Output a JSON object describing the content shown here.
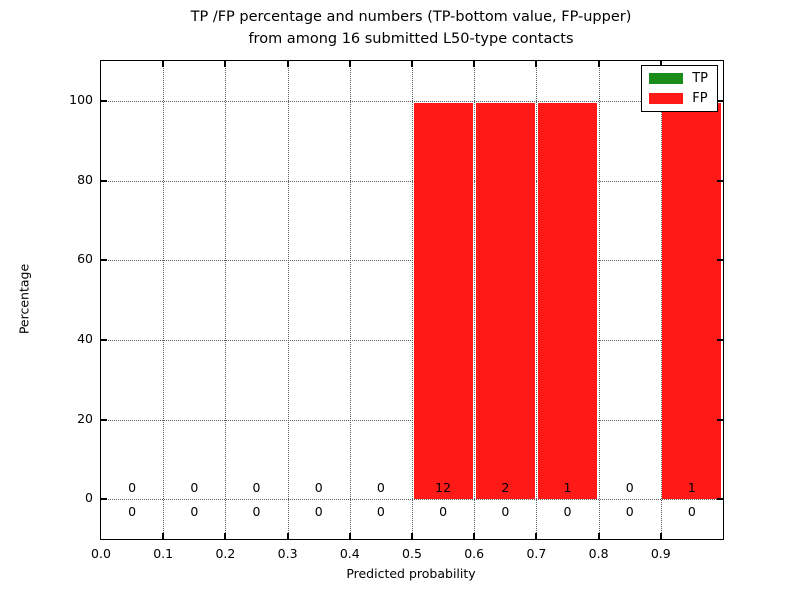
{
  "title": {
    "line1": "TP /FP percentage and numbers (TP-bottom value, FP-upper)",
    "line2": "from among 16 submitted L50-type contacts"
  },
  "axes": {
    "xlabel": "Predicted probability",
    "ylabel": "Percentage",
    "x_tick_labels": [
      "0.0",
      "0.1",
      "0.2",
      "0.3",
      "0.4",
      "0.5",
      "0.6",
      "0.7",
      "0.8",
      "0.9"
    ],
    "y_tick_labels": [
      "0",
      "20",
      "40",
      "60",
      "80",
      "100"
    ]
  },
  "legend": {
    "items": [
      {
        "label": "TP",
        "color": "#1a8c1a"
      },
      {
        "label": "FP",
        "color": "#ff1a17"
      }
    ]
  },
  "chart_data": {
    "type": "bar",
    "title": "TP /FP percentage and numbers (TP-bottom value, FP-upper) from among 16 submitted L50-type contacts",
    "xlabel": "Predicted probability",
    "ylabel": "Percentage",
    "xlim": [
      0.0,
      1.0
    ],
    "ylim": [
      -10,
      110
    ],
    "grid": true,
    "grid_style": "dotted",
    "legend_position": "upper right",
    "bin_width": 0.1,
    "bin_starts": [
      0.0,
      0.1,
      0.2,
      0.3,
      0.4,
      0.5,
      0.6,
      0.7,
      0.8,
      0.9
    ],
    "x_ticks": [
      0.0,
      0.1,
      0.2,
      0.3,
      0.4,
      0.5,
      0.6,
      0.7,
      0.8,
      0.9
    ],
    "y_ticks": [
      0,
      20,
      40,
      60,
      80,
      100
    ],
    "total_submitted_contacts": 16,
    "series": [
      {
        "name": "TP",
        "color": "#1a8c1a",
        "percent": [
          0,
          0,
          0,
          0,
          0,
          0,
          0,
          0,
          0,
          0
        ],
        "counts": [
          0,
          0,
          0,
          0,
          0,
          0,
          0,
          0,
          0,
          0
        ]
      },
      {
        "name": "FP",
        "color": "#ff1a17",
        "percent": [
          0,
          0,
          0,
          0,
          0,
          100,
          100,
          100,
          0,
          100
        ],
        "counts": [
          0,
          0,
          0,
          0,
          0,
          12,
          2,
          1,
          0,
          1
        ]
      }
    ]
  }
}
